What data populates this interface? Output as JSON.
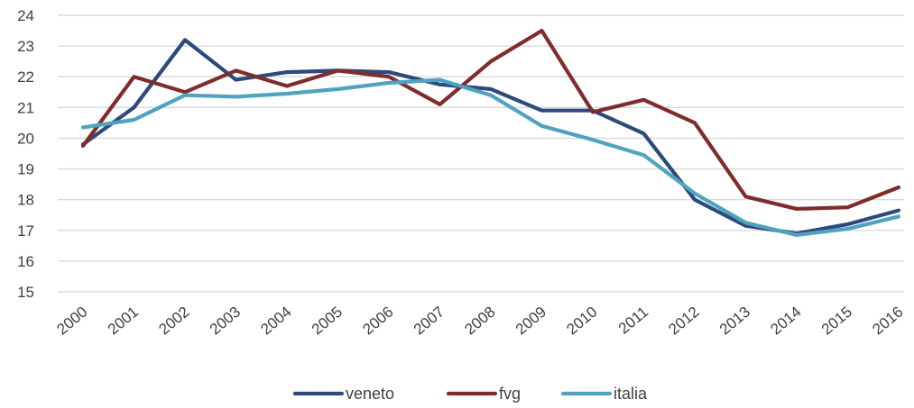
{
  "chart_data": {
    "type": "line",
    "title": "",
    "xlabel": "",
    "ylabel": "",
    "categories": [
      "2000",
      "2001",
      "2002",
      "2003",
      "2004",
      "2005",
      "2006",
      "2007",
      "2008",
      "2009",
      "2010",
      "2011",
      "2012",
      "2013",
      "2014",
      "2015",
      "2016"
    ],
    "ylim": [
      15,
      24
    ],
    "yticks": [
      "15",
      "16",
      "17",
      "18",
      "19",
      "20",
      "21",
      "22",
      "23",
      "24"
    ],
    "grid": true,
    "legend_position": "bottom",
    "series": [
      {
        "name": "veneto",
        "color": "#2E4A7D",
        "values": [
          19.8,
          21.0,
          23.2,
          21.9,
          22.15,
          22.2,
          22.15,
          21.75,
          21.6,
          20.9,
          20.9,
          20.15,
          18.0,
          17.15,
          16.9,
          17.2,
          17.65
        ]
      },
      {
        "name": "fvg",
        "color": "#7F2C2C",
        "values": [
          19.75,
          22.0,
          21.5,
          22.2,
          21.7,
          22.2,
          22.0,
          21.1,
          22.5,
          23.5,
          20.85,
          21.25,
          20.5,
          18.1,
          17.7,
          17.75,
          18.4
        ]
      },
      {
        "name": "italia",
        "color": "#4FA3BF",
        "values": [
          20.35,
          20.6,
          21.4,
          21.35,
          21.45,
          21.6,
          21.8,
          21.9,
          21.4,
          20.4,
          19.95,
          19.45,
          18.2,
          17.25,
          16.85,
          17.05,
          17.45
        ]
      }
    ]
  }
}
